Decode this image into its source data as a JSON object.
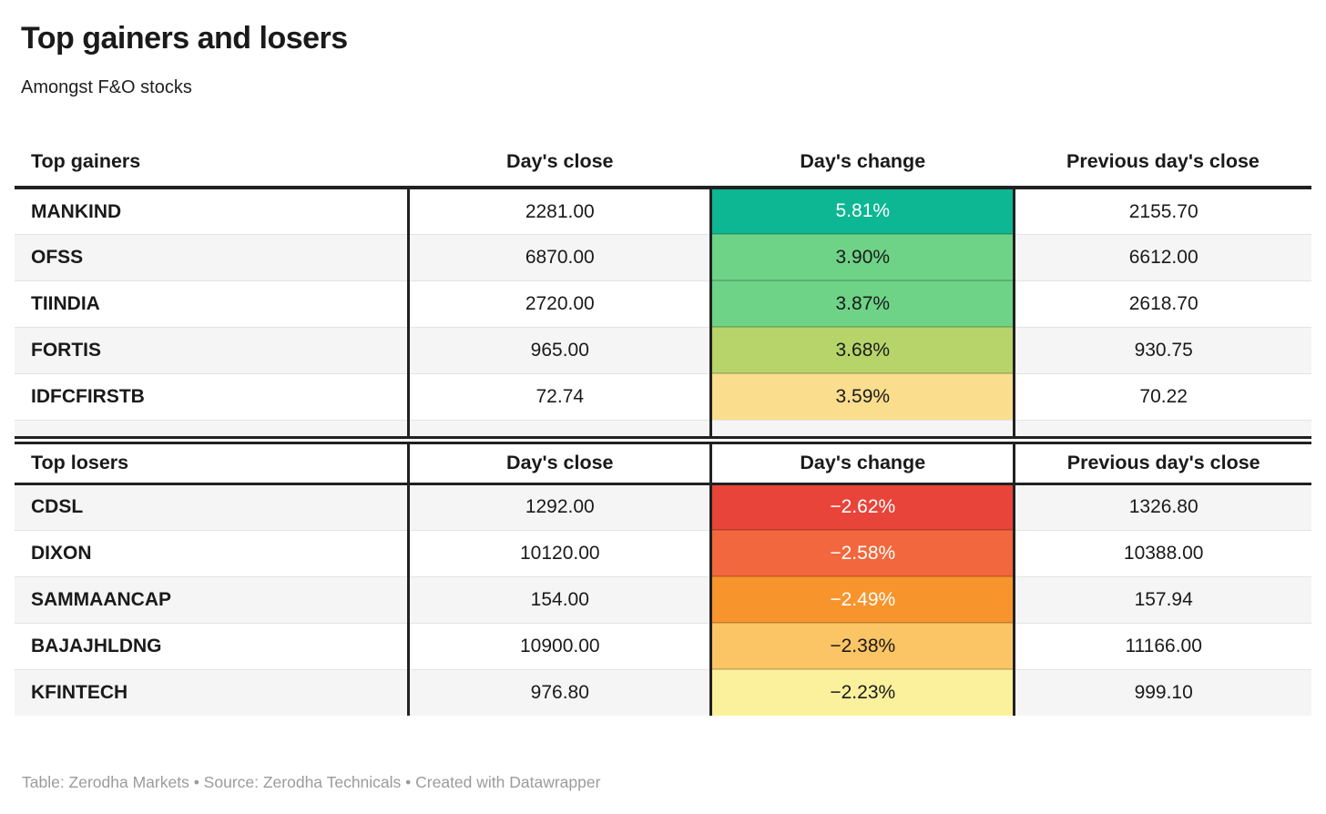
{
  "title": "Top gainers and losers",
  "subtitle": "Amongst F&O stocks",
  "footer": {
    "text": "Table: Zerodha Markets • Source: Zerodha Technicals • Created with Datawrapper"
  },
  "colors": {
    "heavy_border": "#212121",
    "row_divider": "#e4e4e4",
    "alt_row_bg": "#f5f5f5",
    "text": "#1a1a1a",
    "footer_text": "#9b9b9b"
  },
  "chart_data": [
    {
      "type": "table",
      "title": "Top gainers",
      "columns": [
        "Top gainers",
        "Day's close",
        "Day's change",
        "Previous day's close"
      ],
      "alt_rows": "even_white_odd_gray",
      "rows": [
        {
          "name": "MANKIND",
          "days_close": "2281.00",
          "days_change": "5.81%",
          "prev_close": "2155.70",
          "change_bg": "#0db793",
          "change_fg": "#ffffff"
        },
        {
          "name": "OFSS",
          "days_close": "6870.00",
          "days_change": "3.90%",
          "prev_close": "6612.00",
          "change_bg": "#6ed387",
          "change_fg": "#1a1a1a"
        },
        {
          "name": "TIINDIA",
          "days_close": "2720.00",
          "days_change": "3.87%",
          "prev_close": "2618.70",
          "change_bg": "#6ed387",
          "change_fg": "#1a1a1a"
        },
        {
          "name": "FORTIS",
          "days_close": "965.00",
          "days_change": "3.68%",
          "prev_close": "930.75",
          "change_bg": "#b7d46a",
          "change_fg": "#1a1a1a"
        },
        {
          "name": "IDFCFIRSTB",
          "days_close": "72.74",
          "days_change": "3.59%",
          "prev_close": "70.22",
          "change_bg": "#fadd8d",
          "change_fg": "#1a1a1a"
        }
      ]
    },
    {
      "type": "table",
      "title": "Top losers",
      "columns": [
        "Top losers",
        "Day's close",
        "Day's change",
        "Previous day's close"
      ],
      "alt_rows": "even_gray_odd_white",
      "rows": [
        {
          "name": "CDSL",
          "days_close": "1292.00",
          "days_change": "−2.62%",
          "prev_close": "1326.80",
          "change_bg": "#e84439",
          "change_fg": "#ffffff"
        },
        {
          "name": "DIXON",
          "days_close": "10120.00",
          "days_change": "−2.58%",
          "prev_close": "10388.00",
          "change_bg": "#f2673d",
          "change_fg": "#ffffff"
        },
        {
          "name": "SAMMAANCAP",
          "days_close": "154.00",
          "days_change": "−2.49%",
          "prev_close": "157.94",
          "change_bg": "#f8942c",
          "change_fg": "#ffffff"
        },
        {
          "name": "BAJAJHLDNG",
          "days_close": "10900.00",
          "days_change": "−2.38%",
          "prev_close": "11166.00",
          "change_bg": "#fbc565",
          "change_fg": "#1a1a1a"
        },
        {
          "name": "KFINTECH",
          "days_close": "976.80",
          "days_change": "−2.23%",
          "prev_close": "999.10",
          "change_bg": "#fbf09c",
          "change_fg": "#1a1a1a"
        }
      ]
    }
  ]
}
